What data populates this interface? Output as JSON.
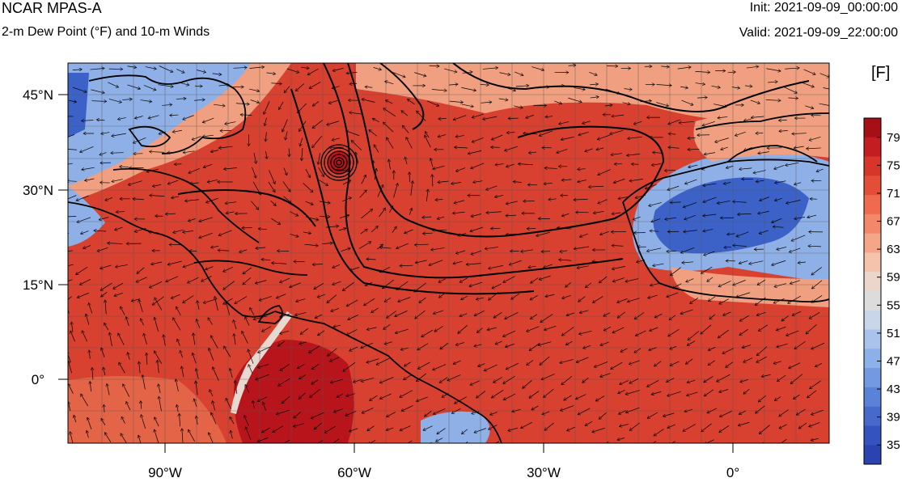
{
  "header": {
    "model": "NCAR MPAS-A",
    "field": "2-m Dew Point (°F) and 10-m Winds",
    "init": "Init: 2021-09-09_00:00:00",
    "valid": "Valid: 2021-09-09_22:00:00"
  },
  "colorbar": {
    "units": "[F]",
    "labels": [
      "79",
      "75",
      "71",
      "67",
      "63",
      "59",
      "55",
      "51",
      "47",
      "43",
      "39",
      "35"
    ],
    "colors": [
      "#a50f15",
      "#c41d21",
      "#d8352a",
      "#e44d38",
      "#ef6a4f",
      "#f3876a",
      "#f6a688",
      "#f5c3ab",
      "#ecd6cc",
      "#dcdcdc",
      "#c9d6ea",
      "#a9c3ec",
      "#8db0ea",
      "#7299e2",
      "#5a82d8",
      "#466acc",
      "#3553bf",
      "#2a43b0"
    ]
  },
  "map": {
    "lat_labels": [
      "45°N",
      "30°N",
      "15°N",
      "0°"
    ],
    "lon_labels": [
      "90°W",
      "60°W",
      "30°W",
      "0°"
    ],
    "field_colors": {
      "warm_core": "#b8141c",
      "warm": "#d8412f",
      "mid": "#e46448",
      "light": "#f0a080",
      "neutral": "#e8d8d0",
      "cool": "#8fb0e6",
      "cold": "#3c62c8"
    }
  }
}
